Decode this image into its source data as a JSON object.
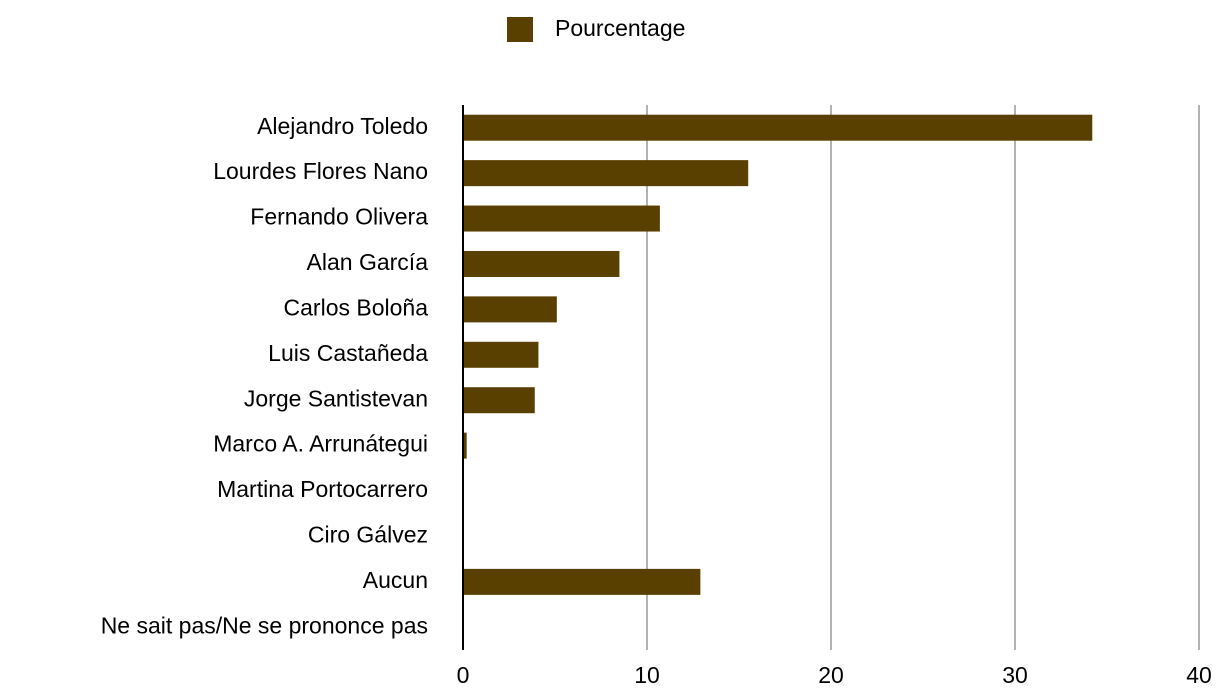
{
  "chart_data": {
    "type": "bar",
    "orientation": "horizontal",
    "categories": [
      "Alejandro Toledo",
      "Lourdes Flores Nano",
      "Fernando Olivera",
      "Alan García",
      "Carlos Boloña",
      "Luis Castañeda",
      "Jorge Santistevan",
      "Marco A. Arrunátegui",
      "Martina Portocarrero",
      "Ciro Gálvez",
      "Aucun",
      "Ne sait pas/Ne se prononce pas"
    ],
    "series": [
      {
        "name": "Pourcentage",
        "color": "#5a4000",
        "values": [
          34.2,
          15.5,
          10.7,
          8.5,
          5.1,
          4.1,
          3.9,
          0.2,
          0,
          0,
          12.9,
          0
        ]
      }
    ],
    "xlim": [
      0,
      40
    ],
    "xticks": [
      0,
      10,
      20,
      30,
      40
    ],
    "grid": true,
    "legend": "top"
  }
}
